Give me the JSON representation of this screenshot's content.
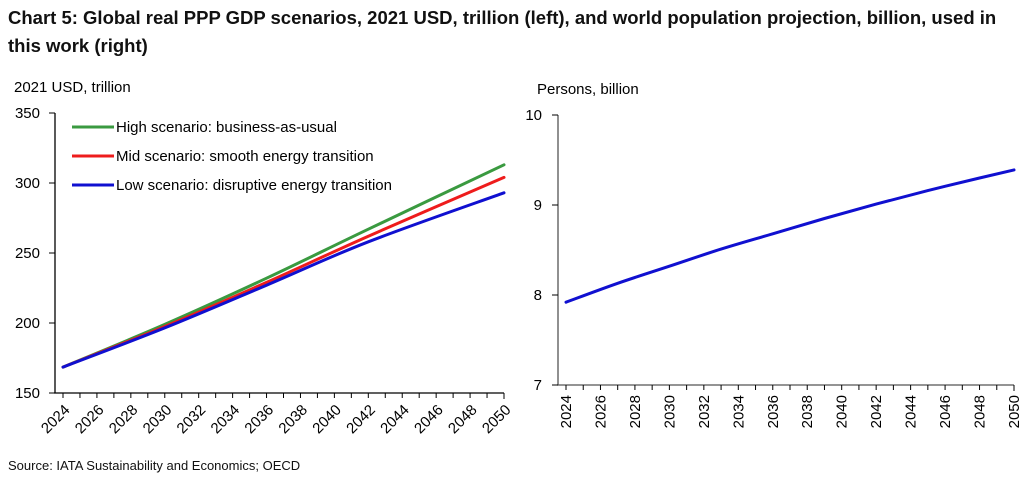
{
  "title": "Chart 5: Global real PPP GDP scenarios, 2021 USD, trillion (left), and world population projection, billion, used in this work (right)",
  "source": "Source: IATA Sustainability and Economics; OECD",
  "chart_data": [
    {
      "type": "line",
      "title": "Global real PPP GDP scenarios",
      "ylabel": "2021 USD, trillion",
      "xlabel": "",
      "ylim": [
        150,
        350
      ],
      "yticks": [
        150,
        200,
        250,
        300,
        350
      ],
      "xlim": [
        2024,
        2050
      ],
      "xticks": [
        "2024",
        "2026",
        "2028",
        "2030",
        "2032",
        "2034",
        "2036",
        "2038",
        "2040",
        "2042",
        "2044",
        "2046",
        "2048",
        "2050"
      ],
      "x_tick_rotation": "diagonal",
      "legend_position": "top-left",
      "grid": false,
      "x": [
        2024,
        2030,
        2036,
        2042,
        2050
      ],
      "series": [
        {
          "name": "High scenario: business-as-usual",
          "color": "#3a9a40",
          "values": [
            168.5,
            199,
            232,
            267,
            313
          ]
        },
        {
          "name": "Mid scenario: smooth energy transition",
          "color": "#ee1c1c",
          "values": [
            168.5,
            197.5,
            229,
            262,
            304
          ]
        },
        {
          "name": "Low scenario: disruptive energy transition",
          "color": "#1010d0",
          "values": [
            168.5,
            196.5,
            227,
            258,
            293
          ]
        }
      ]
    },
    {
      "type": "line",
      "title": "World population projection",
      "ylabel": "Persons, billion",
      "xlabel": "",
      "ylim": [
        7,
        10
      ],
      "yticks": [
        7,
        8,
        9,
        10
      ],
      "xlim": [
        2024,
        2050
      ],
      "xticks": [
        "2024",
        "2026",
        "2028",
        "2030",
        "2032",
        "2034",
        "2036",
        "2038",
        "2040",
        "2042",
        "2044",
        "2046",
        "2048",
        "2050"
      ],
      "x_tick_rotation": "vertical",
      "grid": false,
      "x": [
        2024,
        2027,
        2030,
        2033,
        2036,
        2039,
        2042,
        2045,
        2048,
        2050
      ],
      "series": [
        {
          "name": "World population",
          "color": "#1010d0",
          "values": [
            7.92,
            8.13,
            8.32,
            8.51,
            8.68,
            8.85,
            9.01,
            9.16,
            9.3,
            9.39
          ]
        }
      ]
    }
  ]
}
